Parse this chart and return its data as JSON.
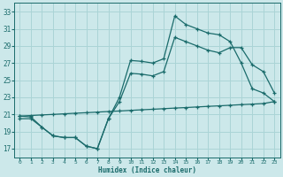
{
  "xlabel": "Humidex (Indice chaleur)",
  "ylabel": "",
  "background_color": "#cce8ea",
  "grid_color": "#aad4d6",
  "line_color": "#1a6b6b",
  "xlim": [
    -0.5,
    23.5
  ],
  "ylim": [
    16,
    34
  ],
  "xticks": [
    0,
    1,
    2,
    3,
    4,
    5,
    6,
    7,
    8,
    9,
    10,
    11,
    12,
    13,
    14,
    15,
    16,
    17,
    18,
    19,
    20,
    21,
    22,
    23
  ],
  "yticks": [
    17,
    19,
    21,
    23,
    25,
    27,
    29,
    31,
    33
  ],
  "line1_x": [
    0,
    1,
    2,
    3,
    4,
    5,
    6,
    7,
    8,
    9,
    10,
    11,
    12,
    13,
    14,
    15,
    16,
    17,
    18,
    19,
    20,
    21,
    22,
    23
  ],
  "line1_y": [
    20.8,
    20.7,
    19.5,
    18.5,
    18.3,
    18.3,
    17.3,
    17.0,
    20.5,
    23.0,
    27.3,
    27.2,
    27.0,
    27.5,
    32.5,
    31.5,
    31.0,
    30.5,
    30.3,
    29.5,
    27.0,
    24.0,
    23.5,
    22.5
  ],
  "line2_x": [
    0,
    1,
    2,
    3,
    4,
    5,
    6,
    7,
    8,
    9,
    10,
    11,
    12,
    13,
    14,
    15,
    16,
    17,
    18,
    19,
    20,
    21,
    22,
    23
  ],
  "line2_y": [
    20.5,
    20.5,
    19.5,
    18.5,
    18.3,
    18.3,
    17.3,
    17.0,
    20.5,
    22.5,
    25.8,
    25.7,
    25.5,
    26.0,
    30.0,
    29.5,
    29.0,
    28.5,
    28.2,
    28.8,
    28.8,
    26.8,
    26.0,
    23.5
  ],
  "line3_x": [
    0,
    1,
    2,
    3,
    4,
    5,
    6,
    7,
    8,
    9,
    10,
    11,
    12,
    13,
    14,
    15,
    16,
    17,
    18,
    19,
    20,
    21,
    22,
    23
  ],
  "line3_y": [
    20.8,
    20.87,
    20.94,
    21.0,
    21.07,
    21.14,
    21.2,
    21.27,
    21.34,
    21.4,
    21.47,
    21.54,
    21.6,
    21.67,
    21.74,
    21.8,
    21.87,
    21.94,
    22.0,
    22.07,
    22.14,
    22.2,
    22.27,
    22.5
  ]
}
